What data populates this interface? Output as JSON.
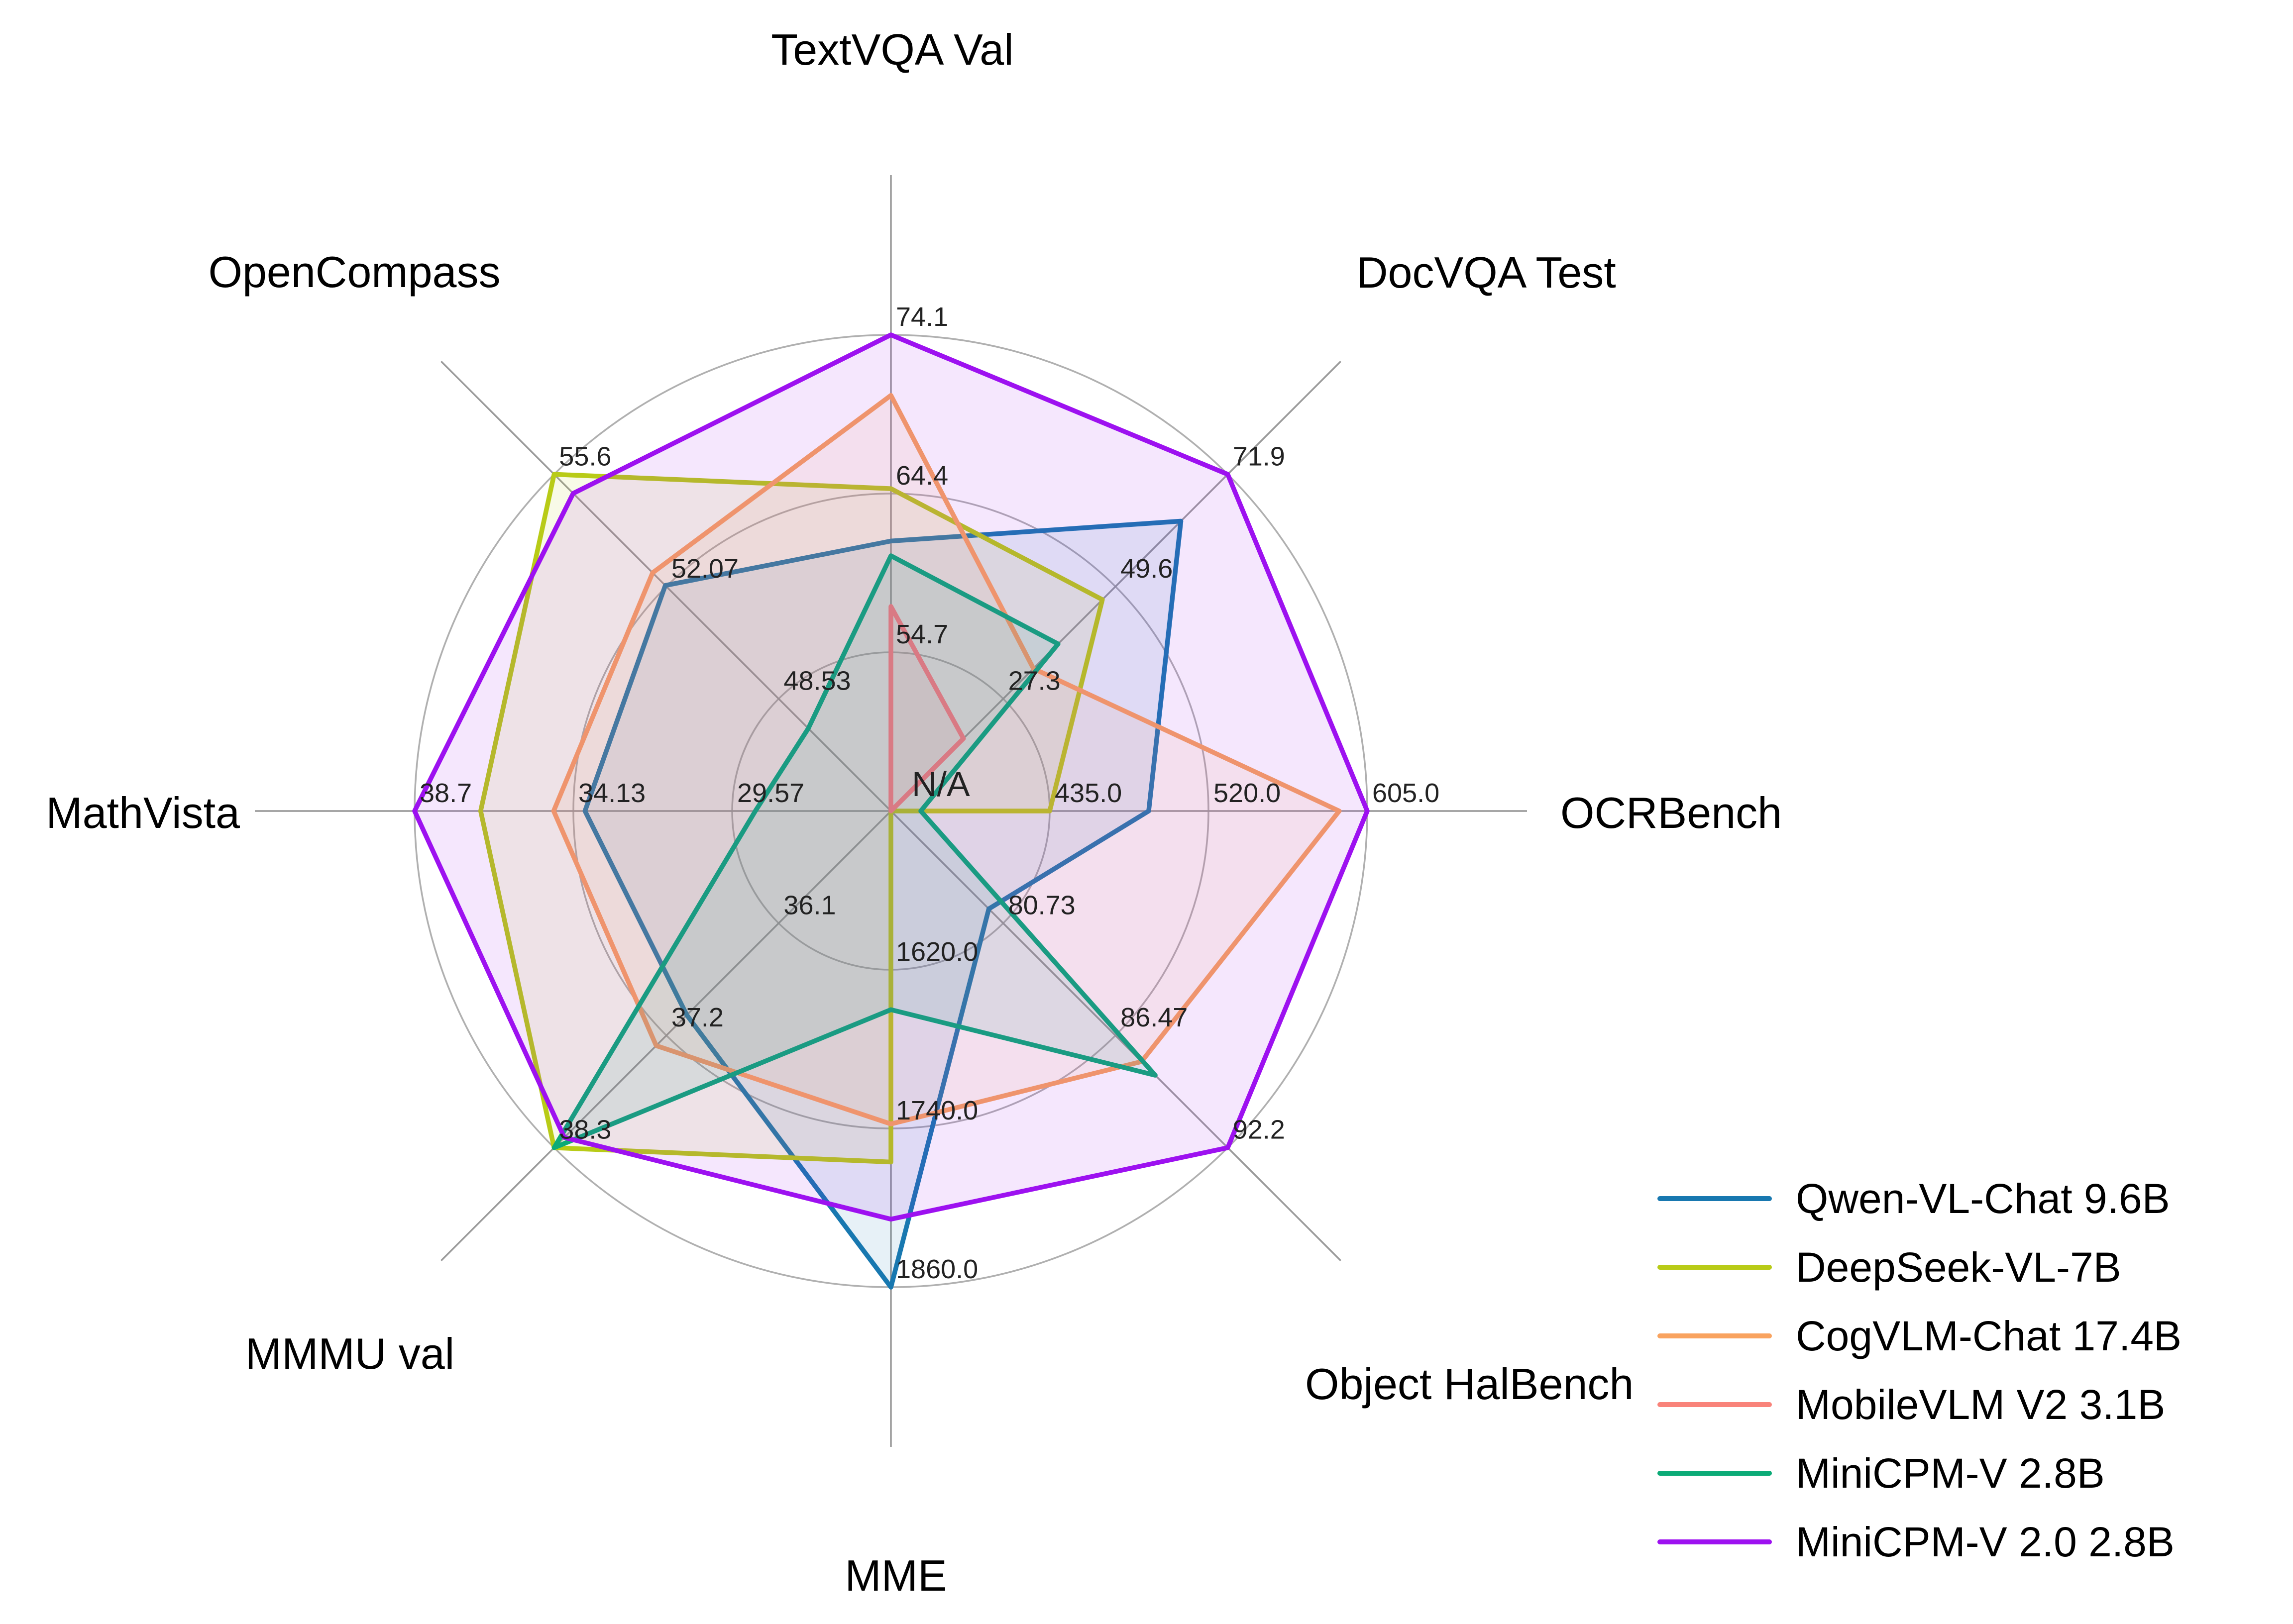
{
  "chart_data": {
    "type": "radar",
    "title": "",
    "center_label": "N/A",
    "grid": {
      "rings": 3,
      "ring_color": "#b0b0b0",
      "spoke_color": "#9a9a9a",
      "grid_on": true
    },
    "legend_position": "lower right",
    "axes": [
      {
        "label": "TextVQA Val",
        "angle_deg": 90,
        "min": 45.0,
        "max": 74.1,
        "ticks": [
          "54.7",
          "64.4",
          "74.1"
        ]
      },
      {
        "label": "DocVQA Test",
        "angle_deg": 45,
        "min": 5.0,
        "max": 71.9,
        "ticks": [
          "27.3",
          "49.6",
          "71.9"
        ]
      },
      {
        "label": "OCRBench",
        "angle_deg": 0,
        "min": 350.0,
        "max": 605.0,
        "ticks": [
          "435.0",
          "520.0",
          "605.0"
        ]
      },
      {
        "label": "Object HalBench",
        "angle_deg": -45,
        "min": 75.0,
        "max": 92.2,
        "ticks": [
          "80.73",
          "86.47",
          "92.2"
        ]
      },
      {
        "label": "MME",
        "angle_deg": -90,
        "min": 1500.0,
        "max": 1860.0,
        "ticks": [
          "1620.0",
          "1740.0",
          "1860.0"
        ]
      },
      {
        "label": "MMMU val",
        "angle_deg": -135,
        "min": 35.0,
        "max": 38.3,
        "ticks": [
          "36.1",
          "37.2",
          "38.3"
        ]
      },
      {
        "label": "MathVista",
        "angle_deg": 180,
        "min": 25.0,
        "max": 38.7,
        "ticks": [
          "29.57",
          "34.13",
          "38.7"
        ]
      },
      {
        "label": "OpenCompass",
        "angle_deg": 135,
        "min": 45.0,
        "max": 55.6,
        "ticks": [
          "48.53",
          "52.07",
          "55.6"
        ]
      }
    ],
    "series": [
      {
        "name": "Qwen-VL-Chat 9.6B",
        "color": "#1878b0",
        "values": [
          61.5,
          62.6,
          488.0,
          80.0,
          1860.0,
          37.0,
          33.8,
          52.1
        ]
      },
      {
        "name": "DeepSeek-VL-7B",
        "color": "#b8cb17",
        "values": [
          64.7,
          47.0,
          435.0,
          null,
          1765.4,
          38.3,
          36.8,
          55.6
        ]
      },
      {
        "name": "CogVLM-Chat 17.4B",
        "color": "#f9a35f",
        "values": [
          70.4,
          33.3,
          590.0,
          87.8,
          1736.6,
          37.3,
          34.7,
          52.5
        ]
      },
      {
        "name": "MobileVLM V2 3.1B",
        "color": "#f9837a",
        "values": [
          57.5,
          19.4,
          null,
          null,
          null,
          null,
          null,
          null
        ]
      },
      {
        "name": "MiniCPM-V 2.8B",
        "color": "#0cab77",
        "values": [
          60.6,
          38.2,
          366.0,
          88.5,
          1650.2,
          38.3,
          28.9,
          47.6
        ]
      },
      {
        "name": "MiniCPM-V 2.0 2.8B",
        "color": "#9d11f0",
        "values": [
          74.1,
          71.9,
          605.0,
          92.2,
          1808.6,
          38.2,
          38.7,
          55.0
        ]
      }
    ]
  }
}
